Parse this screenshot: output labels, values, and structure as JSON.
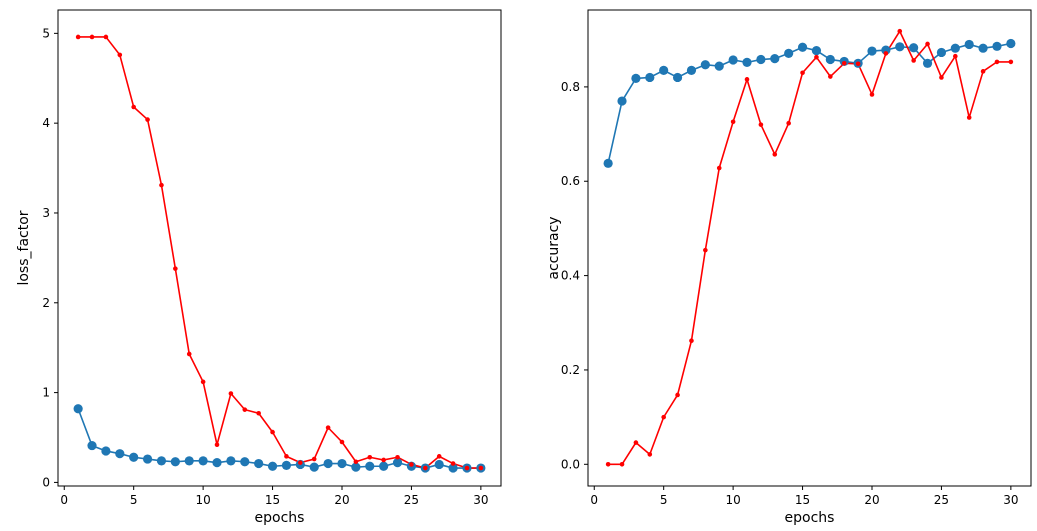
{
  "chart_data": [
    {
      "type": "line",
      "title": "",
      "xlabel": "epochs",
      "ylabel": "loss_factor",
      "xlim": [
        -0.45,
        31.45
      ],
      "ylim": [
        -0.04,
        5.26
      ],
      "xticks": [
        0,
        5,
        10,
        15,
        20,
        25,
        30
      ],
      "yticks": [
        0,
        1,
        2,
        3,
        4,
        5
      ],
      "grid": false,
      "legend": "none",
      "x": [
        1,
        2,
        3,
        4,
        5,
        6,
        7,
        8,
        9,
        10,
        11,
        12,
        13,
        14,
        15,
        16,
        17,
        18,
        19,
        20,
        21,
        22,
        23,
        24,
        25,
        26,
        27,
        28,
        29,
        30
      ],
      "series": [
        {
          "color": "#1f77b4",
          "marker": "large-circle",
          "values": [
            0.82,
            0.41,
            0.35,
            0.32,
            0.28,
            0.26,
            0.24,
            0.23,
            0.24,
            0.24,
            0.22,
            0.24,
            0.23,
            0.21,
            0.18,
            0.19,
            0.2,
            0.17,
            0.21,
            0.21,
            0.17,
            0.18,
            0.18,
            0.22,
            0.18,
            0.16,
            0.2,
            0.16,
            0.16,
            0.16
          ]
        },
        {
          "color": "#ff0000",
          "marker": "small-dot",
          "values": [
            4.96,
            4.96,
            4.96,
            4.76,
            4.18,
            4.04,
            3.31,
            2.38,
            1.43,
            1.12,
            0.42,
            0.99,
            0.81,
            0.77,
            0.56,
            0.29,
            0.22,
            0.26,
            0.61,
            0.45,
            0.23,
            0.28,
            0.25,
            0.28,
            0.2,
            0.16,
            0.29,
            0.21,
            0.16,
            0.16
          ]
        }
      ]
    },
    {
      "type": "line",
      "title": "",
      "xlabel": "epochs",
      "ylabel": "accuracy",
      "xlim": [
        -0.45,
        31.45
      ],
      "ylim": [
        -0.046,
        0.963
      ],
      "xticks": [
        0,
        5,
        10,
        15,
        20,
        25,
        30
      ],
      "yticks": [
        0.0,
        0.2,
        0.4,
        0.6,
        0.8
      ],
      "grid": false,
      "legend": "none",
      "x": [
        1,
        2,
        3,
        4,
        5,
        6,
        7,
        8,
        9,
        10,
        11,
        12,
        13,
        14,
        15,
        16,
        17,
        18,
        19,
        20,
        21,
        22,
        23,
        24,
        25,
        26,
        27,
        28,
        29,
        30
      ],
      "series": [
        {
          "color": "#1f77b4",
          "marker": "large-circle",
          "values": [
            0.638,
            0.77,
            0.818,
            0.82,
            0.835,
            0.82,
            0.835,
            0.847,
            0.844,
            0.857,
            0.852,
            0.858,
            0.86,
            0.871,
            0.884,
            0.877,
            0.858,
            0.854,
            0.85,
            0.876,
            0.878,
            0.885,
            0.883,
            0.85,
            0.873,
            0.882,
            0.89,
            0.882,
            0.886,
            0.892
          ]
        },
        {
          "color": "#ff0000",
          "marker": "small-dot",
          "values": [
            0.0,
            0.0,
            0.046,
            0.021,
            0.1,
            0.147,
            0.262,
            0.454,
            0.628,
            0.726,
            0.816,
            0.72,
            0.657,
            0.723,
            0.83,
            0.863,
            0.822,
            0.85,
            0.849,
            0.784,
            0.871,
            0.918,
            0.856,
            0.891,
            0.82,
            0.865,
            0.735,
            0.833,
            0.853,
            0.853
          ]
        }
      ]
    }
  ]
}
